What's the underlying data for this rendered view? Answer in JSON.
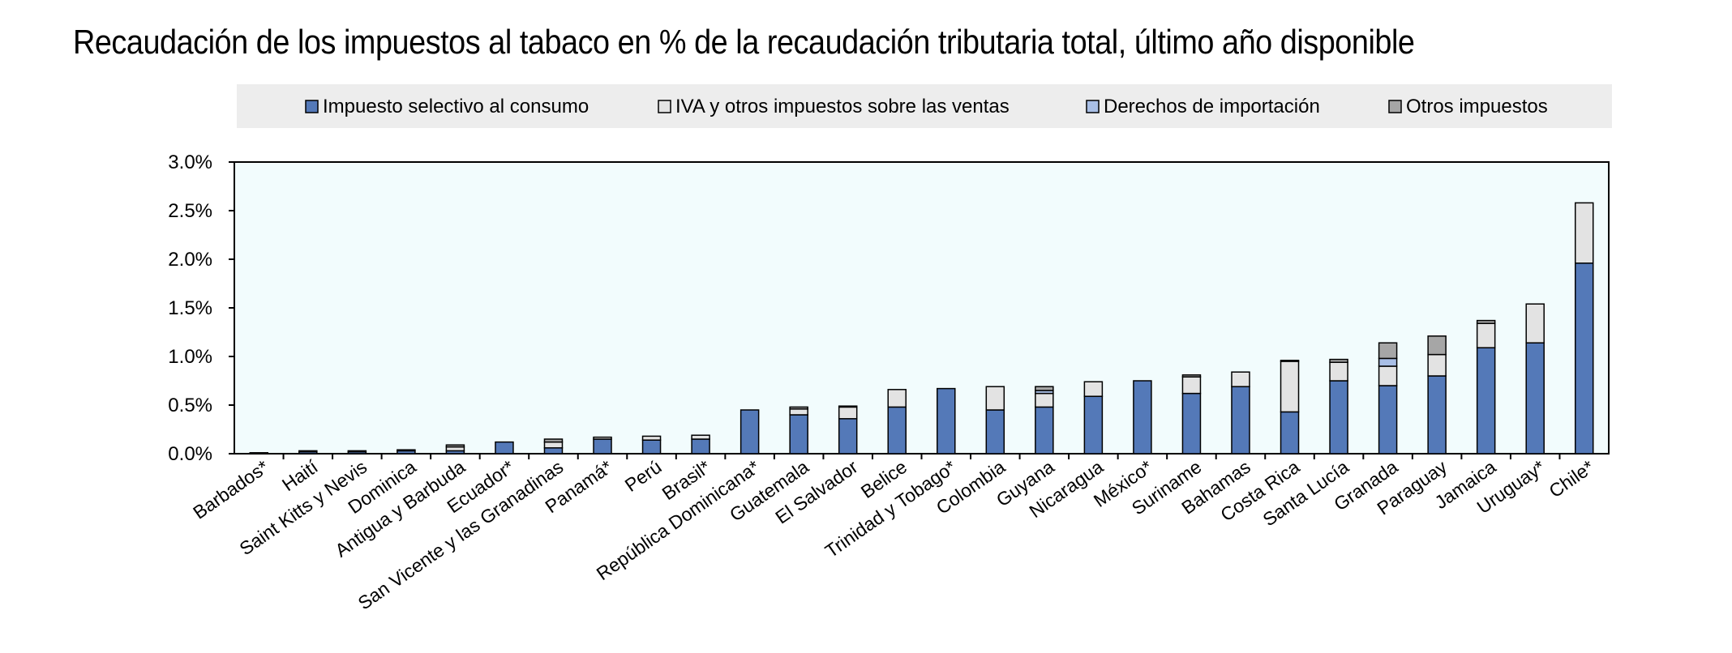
{
  "chart_data": {
    "type": "bar",
    "stacked": true,
    "title": "Recaudación de los impuestos al tabaco en % de la recaudación tributaria total, último año disponible",
    "xlabel": "",
    "ylabel": "",
    "ylim": [
      0,
      3.0
    ],
    "yticks": [
      "0.0%",
      "0.5%",
      "1.0%",
      "1.5%",
      "2.0%",
      "2.5%",
      "3.0%"
    ],
    "legend_position": "top",
    "grid": false,
    "categories": [
      "Barbados*",
      "Haití",
      "Saint Kitts y Nevis",
      "Dominica",
      "Antigua y Barbuda",
      "Ecuador*",
      "San Vicente y las Granadinas",
      "Panamá*",
      "Perú",
      "Brasil*",
      "República Dominicana*",
      "Guatemala",
      "El Salvador",
      "Belice",
      "Trinidad y Tobago*",
      "Colombia",
      "Guyana",
      "Nicaragua",
      "México*",
      "Suriname",
      "Bahamas",
      "Costa Rica",
      "Santa Lucía",
      "Granada",
      "Paraguay",
      "Jamaica",
      "Uruguay*",
      "Chile*"
    ],
    "series": [
      {
        "name": "Impuesto selectivo al consumo",
        "color": "#5479b8",
        "values": [
          0.01,
          0.02,
          0.02,
          0.03,
          0.03,
          0.12,
          0.06,
          0.15,
          0.14,
          0.15,
          0.45,
          0.4,
          0.36,
          0.48,
          0.67,
          0.45,
          0.48,
          0.59,
          0.75,
          0.62,
          0.69,
          0.43,
          0.75,
          0.7,
          0.8,
          1.09,
          1.14,
          1.96
        ]
      },
      {
        "name": "IVA y otros impuestos sobre las ventas",
        "color": "#e3e3e3",
        "values": [
          0.0,
          0.0,
          0.0,
          0.0,
          0.04,
          0.0,
          0.06,
          0.02,
          0.04,
          0.04,
          0.0,
          0.06,
          0.12,
          0.18,
          0.0,
          0.24,
          0.14,
          0.15,
          0.0,
          0.17,
          0.15,
          0.52,
          0.19,
          0.2,
          0.22,
          0.25,
          0.4,
          0.62
        ]
      },
      {
        "name": "Derechos de importación",
        "color": "#a9bfe6",
        "values": [
          0.0,
          0.0,
          0.0,
          0.0,
          0.0,
          0.0,
          0.0,
          0.0,
          0.0,
          0.0,
          0.0,
          0.0,
          0.0,
          0.0,
          0.0,
          0.0,
          0.03,
          0.0,
          0.0,
          0.0,
          0.0,
          0.0,
          0.0,
          0.08,
          0.0,
          0.0,
          0.0,
          0.0
        ]
      },
      {
        "name": "Otros impuestos",
        "color": "#a6a6a6",
        "values": [
          0.0,
          0.01,
          0.01,
          0.01,
          0.02,
          0.0,
          0.03,
          0.0,
          0.0,
          0.0,
          0.0,
          0.02,
          0.01,
          0.0,
          0.0,
          0.0,
          0.04,
          0.0,
          0.0,
          0.02,
          0.0,
          0.01,
          0.03,
          0.16,
          0.19,
          0.03,
          0.0,
          0.0
        ]
      }
    ]
  },
  "colors": {
    "plot_background": "#f2fcfd",
    "legend_background": "#ededed",
    "axis": "#000000"
  }
}
